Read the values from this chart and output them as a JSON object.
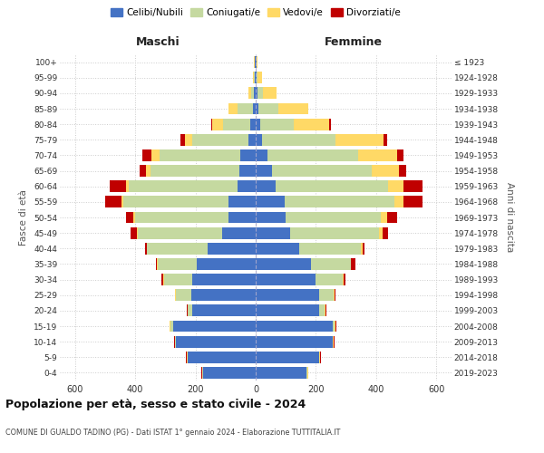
{
  "age_groups": [
    "0-4",
    "5-9",
    "10-14",
    "15-19",
    "20-24",
    "25-29",
    "30-34",
    "35-39",
    "40-44",
    "45-49",
    "50-54",
    "55-59",
    "60-64",
    "65-69",
    "70-74",
    "75-79",
    "80-84",
    "85-89",
    "90-94",
    "95-99",
    "100+"
  ],
  "birth_years": [
    "2019-2023",
    "2014-2018",
    "2009-2013",
    "2004-2008",
    "1999-2003",
    "1994-1998",
    "1989-1993",
    "1984-1988",
    "1979-1983",
    "1974-1978",
    "1969-1973",
    "1964-1968",
    "1959-1963",
    "1954-1958",
    "1949-1953",
    "1944-1948",
    "1939-1943",
    "1934-1938",
    "1929-1933",
    "1924-1928",
    "≤ 1923"
  ],
  "males": {
    "celibi": [
      175,
      225,
      265,
      275,
      210,
      215,
      210,
      195,
      160,
      110,
      90,
      90,
      60,
      55,
      50,
      25,
      18,
      10,
      5,
      2,
      2
    ],
    "coniugati": [
      2,
      2,
      2,
      8,
      15,
      50,
      95,
      130,
      200,
      280,
      310,
      350,
      360,
      295,
      270,
      185,
      90,
      50,
      10,
      3,
      2
    ],
    "vedovi": [
      2,
      2,
      2,
      2,
      2,
      2,
      2,
      2,
      2,
      5,
      5,
      5,
      10,
      15,
      25,
      25,
      35,
      30,
      10,
      3,
      2
    ],
    "divorziati": [
      2,
      2,
      2,
      2,
      2,
      2,
      5,
      5,
      5,
      20,
      25,
      55,
      55,
      20,
      30,
      15,
      5,
      0,
      0,
      0,
      0
    ]
  },
  "females": {
    "nubili": [
      170,
      210,
      255,
      255,
      210,
      210,
      200,
      185,
      145,
      115,
      100,
      95,
      65,
      55,
      40,
      20,
      15,
      10,
      5,
      2,
      2
    ],
    "coniugate": [
      2,
      2,
      2,
      8,
      20,
      50,
      90,
      130,
      205,
      295,
      315,
      365,
      375,
      330,
      300,
      245,
      110,
      65,
      20,
      5,
      2
    ],
    "vedove": [
      2,
      2,
      2,
      2,
      2,
      2,
      2,
      2,
      5,
      10,
      20,
      30,
      50,
      90,
      130,
      160,
      120,
      100,
      45,
      15,
      3
    ],
    "divorziate": [
      2,
      2,
      2,
      2,
      2,
      2,
      5,
      15,
      5,
      20,
      35,
      65,
      65,
      25,
      20,
      10,
      5,
      0,
      0,
      0,
      0
    ]
  },
  "colors": {
    "celibi": "#4472C4",
    "coniugati": "#c5d9a0",
    "vedovi": "#FFD966",
    "divorziati": "#C00000"
  },
  "xlim": 650,
  "title": "Popolazione per età, sesso e stato civile - 2024",
  "subtitle": "COMUNE DI GUALDO TADINO (PG) - Dati ISTAT 1° gennaio 2024 - Elaborazione TUTTITALIA.IT",
  "ylabel_left": "Fasce di età",
  "ylabel_right": "Anni di nascita",
  "bg_color": "#ffffff",
  "grid_color": "#cccccc"
}
